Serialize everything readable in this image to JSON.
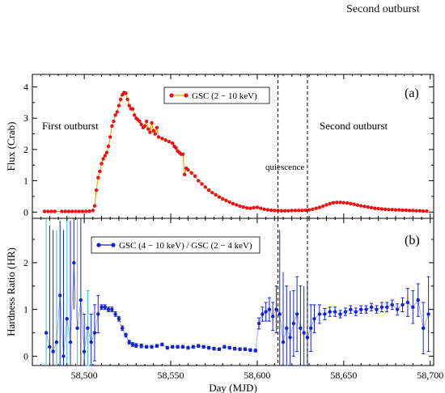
{
  "page_header": "Second outburst",
  "colors": {
    "flux": "#ee1111",
    "flux_line": "#f5a000",
    "hr": "#1020e0",
    "hr_alt": "#30c8c8",
    "axis": "#000000"
  },
  "shared_x": {
    "label": "Day (MJD)",
    "range": [
      58470,
      58702
    ],
    "ticks": [
      58500,
      58550,
      58600,
      58650,
      58700
    ],
    "tick_labels": [
      "58,500",
      "58,550",
      "58,600",
      "58,650",
      "58,700"
    ]
  },
  "vlines": [
    58612,
    58629
  ],
  "chart_data": [
    {
      "type": "scatter",
      "panel_label": "(a)",
      "ylabel": "Flux (Crab)",
      "ylim": [
        -0.2,
        4.4
      ],
      "yticks": [
        0,
        1,
        2,
        3,
        4
      ],
      "legend": {
        "label": "GSC (2 − 10 keV)",
        "placement": "top-center"
      },
      "annotations": [
        "First outburst",
        "Second outburst",
        "quiescence"
      ],
      "grid": false,
      "series": [
        {
          "x": [
            58477,
            58479,
            58481,
            58483,
            58487,
            58489,
            58491,
            58493,
            58495,
            58497,
            58499,
            58501,
            58503,
            58505,
            58506,
            58507,
            58508,
            58509,
            58510,
            58511,
            58512,
            58513,
            58514,
            58515,
            58516,
            58517,
            58518,
            58519,
            58520,
            58521,
            58522,
            58523,
            58524,
            58525,
            58526,
            58527,
            58528,
            58529,
            58530,
            58531,
            58532,
            58533,
            58534,
            58535,
            58536,
            58537,
            58538,
            58539,
            58540,
            58541,
            58542,
            58543,
            58545,
            58547,
            58549,
            58551,
            58552,
            58553,
            58554,
            58555,
            58556,
            58557,
            58558,
            58559,
            58560,
            58562,
            58564,
            58566,
            58568,
            58570,
            58572,
            58574,
            58576,
            58578,
            58580,
            58582,
            58584,
            58586,
            58588,
            58590,
            58592,
            58594,
            58596,
            58598,
            58600,
            58602,
            58604,
            58606,
            58608,
            58610,
            58612,
            58614,
            58616,
            58618,
            58620,
            58622,
            58624,
            58626,
            58628,
            58630,
            58632,
            58634,
            58636,
            58638,
            58640,
            58642,
            58644,
            58646,
            58648,
            58650,
            58652,
            58654,
            58656,
            58658,
            58660,
            58662,
            58664,
            58666,
            58668,
            58670,
            58672,
            58674,
            58676,
            58678,
            58680,
            58682,
            58684,
            58686,
            58688,
            58690,
            58692,
            58694,
            58696,
            58698
          ],
          "y": [
            0.02,
            0.02,
            0.02,
            0.02,
            0.02,
            0.02,
            0.02,
            0.02,
            0.02,
            0.02,
            0.02,
            0.02,
            0.03,
            0.05,
            0.2,
            0.7,
            1.1,
            1.3,
            1.55,
            1.7,
            1.8,
            1.9,
            2.1,
            2.4,
            2.75,
            2.9,
            3.1,
            3.2,
            3.4,
            3.6,
            3.75,
            3.82,
            3.8,
            3.6,
            3.4,
            3.3,
            3.3,
            3.1,
            3.0,
            2.95,
            2.9,
            2.8,
            2.7,
            2.75,
            2.9,
            2.65,
            2.55,
            2.85,
            2.6,
            2.5,
            2.7,
            2.4,
            2.35,
            2.3,
            2.25,
            2.2,
            2.1,
            2.05,
            1.95,
            1.9,
            1.85,
            1.85,
            1.2,
            1.4,
            1.35,
            1.25,
            1.15,
            1.0,
            0.9,
            0.8,
            0.7,
            0.62,
            0.55,
            0.48,
            0.42,
            0.37,
            0.32,
            0.27,
            0.23,
            0.19,
            0.16,
            0.13,
            0.12,
            0.14,
            0.15,
            0.12,
            0.09,
            0.07,
            0.06,
            0.05,
            0.05,
            0.04,
            0.04,
            0.04,
            0.05,
            0.05,
            0.05,
            0.05,
            0.06,
            0.07,
            0.09,
            0.12,
            0.15,
            0.19,
            0.23,
            0.27,
            0.3,
            0.31,
            0.31,
            0.3,
            0.29,
            0.27,
            0.25,
            0.22,
            0.2,
            0.18,
            0.16,
            0.14,
            0.12,
            0.11,
            0.1,
            0.09,
            0.08,
            0.08,
            0.07,
            0.07,
            0.06,
            0.06,
            0.05,
            0.05,
            0.04,
            0.04,
            0.03,
            0.03
          ]
        }
      ]
    },
    {
      "type": "scatter",
      "panel_label": "(b)",
      "ylabel": "Hardness Ratio (HR)",
      "ylim": [
        -0.2,
        2.95
      ],
      "yticks": [
        0,
        1,
        2
      ],
      "legend": {
        "label": "GSC (4 − 10 keV) / GSC (2 − 4 keV)",
        "placement": "top-left"
      },
      "grid": false,
      "series": [
        {
          "x": [
            58478,
            58480,
            58482,
            58484,
            58486,
            58488,
            58490,
            58492,
            58494,
            58496,
            58498,
            58500,
            58502,
            58504,
            58506,
            58508,
            58510,
            58512,
            58514,
            58516,
            58518,
            58520,
            58522,
            58524,
            58526,
            58528,
            58530,
            58533,
            58536,
            58539,
            58542,
            58545,
            58548,
            58551,
            58554,
            58557,
            58560,
            58563,
            58566,
            58569,
            58572,
            58575,
            58578,
            58581,
            58584,
            58587,
            58590,
            58593,
            58596,
            58599,
            58601,
            58603,
            58605,
            58607,
            58609,
            58611,
            58613,
            58615,
            58617,
            58619,
            58621,
            58623,
            58625,
            58627,
            58629,
            58631,
            58633,
            58636,
            58639,
            58642,
            58645,
            58648,
            58651,
            58654,
            58657,
            58660,
            58663,
            58666,
            58669,
            58672,
            58675,
            58678,
            58681,
            58684,
            58687,
            58690,
            58693,
            58696,
            58699
          ],
          "y": [
            0.5,
            0.2,
            0.1,
            0.3,
            1.3,
            0.0,
            0.8,
            0.3,
            2.0,
            0.6,
            1.2,
            0.1,
            0.6,
            0.3,
            0.5,
            0.9,
            1.05,
            1.05,
            1.0,
            1.0,
            0.9,
            0.8,
            0.6,
            0.45,
            0.3,
            0.25,
            0.23,
            0.22,
            0.2,
            0.2,
            0.22,
            0.25,
            0.18,
            0.2,
            0.2,
            0.2,
            0.18,
            0.2,
            0.22,
            0.2,
            0.18,
            0.16,
            0.15,
            0.2,
            0.18,
            0.16,
            0.15,
            0.15,
            0.13,
            0.12,
            0.7,
            0.9,
            0.95,
            1.0,
            0.85,
            1.0,
            0.9,
            0.3,
            0.6,
            0.4,
            0.7,
            0.9,
            0.6,
            0.5,
            0.4,
            0.6,
            0.8,
            0.9,
            0.9,
            0.95,
            0.95,
            0.9,
            0.95,
            1.0,
            0.95,
            1.0,
            1.0,
            1.05,
            1.0,
            1.05,
            1.05,
            1.1,
            1.0,
            1.1,
            1.15,
            1.05,
            1.2,
            0.6,
            0.9
          ],
          "err": [
            2.5,
            2.6,
            2.6,
            2.4,
            1.6,
            2.7,
            2.2,
            2.6,
            1.0,
            2.4,
            1.8,
            0.8,
            0.8,
            0.6,
            0.6,
            0.4,
            0.05,
            0.05,
            0.05,
            0.05,
            0.05,
            0.05,
            0.05,
            0.04,
            0.04,
            0.04,
            0.04,
            0.04,
            0.03,
            0.03,
            0.03,
            0.03,
            0.03,
            0.03,
            0.03,
            0.03,
            0.03,
            0.03,
            0.03,
            0.03,
            0.03,
            0.03,
            0.03,
            0.03,
            0.03,
            0.03,
            0.03,
            0.03,
            0.03,
            0.03,
            0.12,
            0.15,
            0.2,
            0.25,
            0.3,
            0.5,
            1.8,
            1.5,
            0.9,
            1.0,
            0.7,
            0.8,
            0.9,
            1.0,
            1.2,
            0.5,
            0.3,
            0.2,
            0.12,
            0.1,
            0.1,
            0.08,
            0.08,
            0.08,
            0.08,
            0.08,
            0.08,
            0.08,
            0.08,
            0.1,
            0.1,
            0.1,
            0.12,
            0.15,
            0.3,
            0.35,
            0.35,
            0.55,
            0.8
          ]
        }
      ]
    }
  ]
}
